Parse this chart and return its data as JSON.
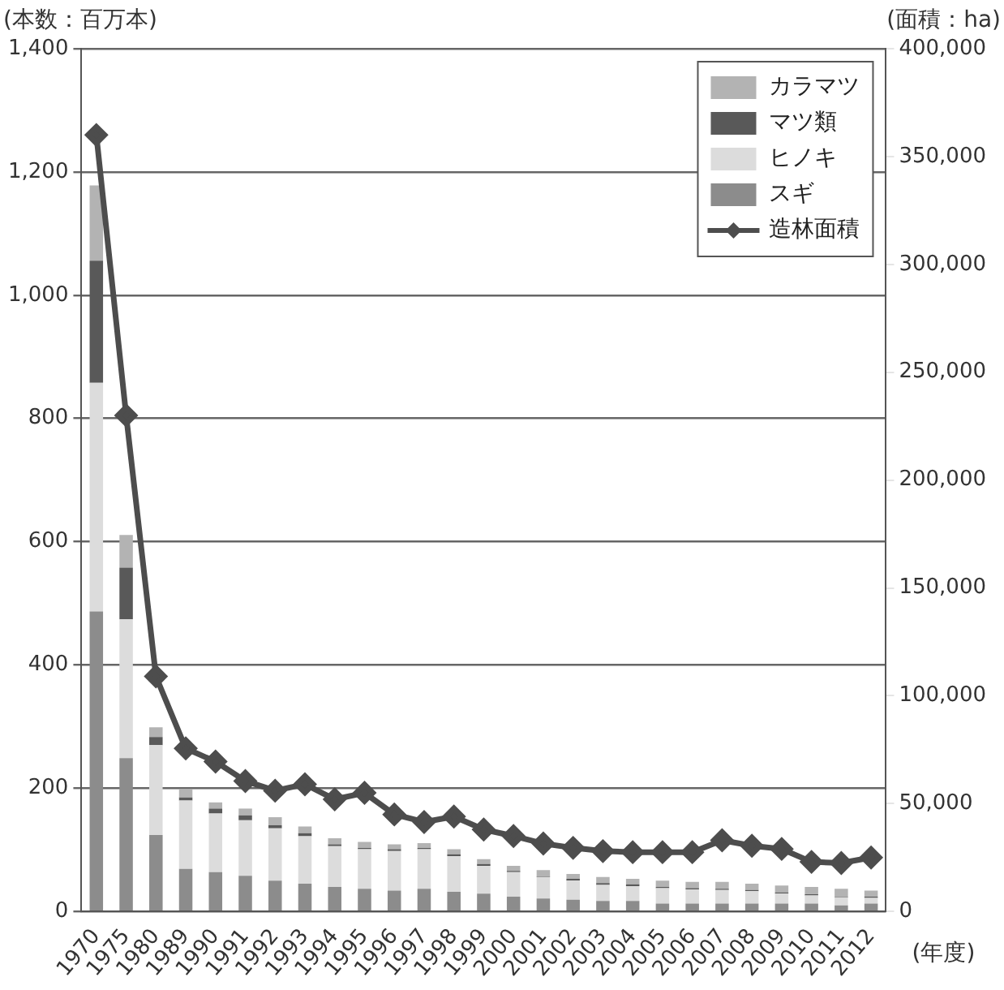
{
  "chart_data": {
    "type": "bar",
    "stacked": true,
    "xlabel": "(年度)",
    "ylabel": "(本数：百万本)",
    "y2label": "(面積：ha)",
    "categories": [
      "1970",
      "1975",
      "1980",
      "1989",
      "1990",
      "1991",
      "1992",
      "1993",
      "1994",
      "1995",
      "1996",
      "1997",
      "1998",
      "1999",
      "2000",
      "2001",
      "2002",
      "2003",
      "2004",
      "2005",
      "2006",
      "2007",
      "2008",
      "2009",
      "2010",
      "2011",
      "2012"
    ],
    "series": [
      {
        "name": "スギ",
        "color": "#8c8c8c",
        "values": [
          487,
          249,
          124,
          69,
          64,
          58,
          50,
          45,
          40,
          37,
          34,
          37,
          32,
          29,
          24,
          21,
          19,
          17,
          17,
          13,
          13,
          13,
          13,
          13,
          13,
          10,
          13
        ]
      },
      {
        "name": "ヒノキ",
        "color": "#dcdcdc",
        "values": [
          371,
          225,
          146,
          111,
          95,
          90,
          85,
          77,
          66,
          64,
          64,
          64,
          58,
          45,
          40,
          35,
          31,
          26,
          24,
          25,
          23,
          22,
          20,
          16,
          13,
          13,
          9
        ]
      },
      {
        "name": "マツ類",
        "color": "#595959",
        "values": [
          198,
          84,
          13,
          5,
          8,
          8,
          5,
          5,
          3,
          2,
          3,
          2,
          3,
          3,
          2,
          1,
          3,
          3,
          3,
          2,
          2,
          2,
          2,
          2,
          2,
          1,
          2
        ]
      },
      {
        "name": "カラマツ",
        "color": "#b3b3b3",
        "values": [
          122,
          53,
          16,
          13,
          10,
          11,
          13,
          11,
          10,
          10,
          8,
          8,
          8,
          8,
          8,
          10,
          8,
          10,
          9,
          10,
          10,
          11,
          10,
          11,
          12,
          13,
          10
        ]
      },
      {
        "name": "造林面積",
        "type": "line",
        "axis": "y2",
        "color": "#4d4d4d",
        "marker": "diamond",
        "values": [
          360000,
          230000,
          109000,
          75600,
          69500,
          60500,
          56000,
          59000,
          52000,
          55000,
          45000,
          41500,
          44000,
          38000,
          35000,
          31500,
          29500,
          28000,
          27500,
          27500,
          27500,
          33000,
          30500,
          29000,
          23000,
          22500,
          25000
        ]
      }
    ],
    "ylim": [
      0,
      1400
    ],
    "yticks": [
      {
        "value": 0,
        "label": "0"
      },
      {
        "value": 200,
        "label": "200"
      },
      {
        "value": 400,
        "label": "400"
      },
      {
        "value": 600,
        "label": "600"
      },
      {
        "value": 800,
        "label": "800"
      },
      {
        "value": 1000,
        "label": "1,000"
      },
      {
        "value": 1200,
        "label": "1,200"
      },
      {
        "value": 1400,
        "label": "1,400"
      }
    ],
    "y2lim": [
      0,
      400000
    ],
    "y2ticks": [
      {
        "value": 0,
        "label": "0"
      },
      {
        "value": 50000,
        "label": "50,000"
      },
      {
        "value": 100000,
        "label": "100,000"
      },
      {
        "value": 150000,
        "label": "150,000"
      },
      {
        "value": 200000,
        "label": "200,000"
      },
      {
        "value": 250000,
        "label": "250,000"
      },
      {
        "value": 300000,
        "label": "300,000"
      },
      {
        "value": 350000,
        "label": "350,000"
      },
      {
        "value": 400000,
        "label": "400,000"
      }
    ],
    "grid": "y",
    "legend": "top right"
  }
}
